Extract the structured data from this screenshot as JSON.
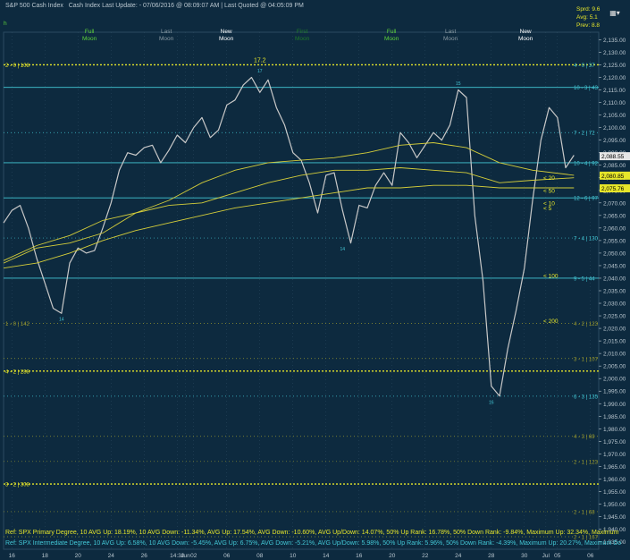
{
  "header": {
    "title": "S&P 500 Cash Index",
    "subtitle": "Cash Index   Last Update:  - 07/06/2016 @ 08:09:07 AM | Last Quoted @ 04:05:09 PM",
    "first_label": "h",
    "moons": [
      {
        "phase": "Full",
        "word": "Moon",
        "color": "#5dd23a"
      },
      {
        "phase": "Last",
        "word": "Moon",
        "color": "#8a9aa3"
      },
      {
        "phase": "New",
        "word": "Moon",
        "color": "#ffffff"
      },
      {
        "phase": "First",
        "word": "Moon",
        "color": "#1f7a2a"
      },
      {
        "phase": "Full",
        "word": "Moon",
        "color": "#5dd23a"
      },
      {
        "phase": "Last",
        "word": "Moon",
        "color": "#8a9aa3"
      },
      {
        "phase": "New",
        "word": "Moon",
        "color": "#ffffff"
      }
    ],
    "stats": [
      "Sprd: 9.6",
      "Avg: 5.1",
      "Prev: 8.8"
    ],
    "menu_icon": "menu-icon"
  },
  "colors": {
    "background": "#0d2a3f",
    "price": "#c8c8c8",
    "cyan": "#43c6d4",
    "yellow": "#e6e62a",
    "olive": "#9c9b2e",
    "ma": "#d4cd3a",
    "grid": "#2a4a60",
    "axis_text": "#b9c6cf"
  },
  "chart_data": {
    "type": "line",
    "ylim": [
      1932,
      2138
    ],
    "y_ticks": [
      1935,
      1940,
      1945,
      1950,
      1955,
      1960,
      1965,
      1970,
      1975,
      1980,
      1985,
      1990,
      1995,
      2000,
      2005,
      2010,
      2015,
      2020,
      2025,
      2030,
      2035,
      2040,
      2045,
      2050,
      2055,
      2060,
      2065,
      2070,
      2075,
      2080,
      2085,
      2090,
      2095,
      2100,
      2105,
      2110,
      2115,
      2120,
      2125,
      2130,
      2135
    ],
    "x_ticks": [
      {
        "label": "16",
        "x": 0.5
      },
      {
        "label": "18",
        "x": 2.5
      },
      {
        "label": "20",
        "x": 4.5
      },
      {
        "label": "24",
        "x": 6.5
      },
      {
        "label": "26",
        "x": 8.5
      },
      {
        "label": "14:30",
        "x": 10.5
      },
      {
        "label": "Jun",
        "x": 11.0
      },
      {
        "label": "02",
        "x": 11.5
      },
      {
        "label": "06",
        "x": 13.5
      },
      {
        "label": "08",
        "x": 15.5
      },
      {
        "label": "10",
        "x": 17.5
      },
      {
        "label": "14",
        "x": 19.5
      },
      {
        "label": "16",
        "x": 21.5
      },
      {
        "label": "20",
        "x": 23.5
      },
      {
        "label": "22",
        "x": 25.5
      },
      {
        "label": "24",
        "x": 27.5
      },
      {
        "label": "28",
        "x": 29.5
      },
      {
        "label": "30",
        "x": 31.5
      },
      {
        "label": "Jul",
        "x": 32.8
      },
      {
        "label": "05",
        "x": 33.5
      },
      {
        "label": "06",
        "x": 35.5
      }
    ],
    "x_range": [
      0,
      36
    ],
    "series": [
      {
        "name": "",
        "style": "price",
        "x": [
          0,
          0.5,
          1,
          1.5,
          2,
          2.5,
          3,
          3.5,
          4,
          4.5,
          5,
          5.5,
          6,
          6.5,
          7,
          7.5,
          8,
          8.5,
          9,
          9.5,
          10,
          10.5,
          11,
          11.5,
          12,
          12.5,
          13,
          13.5,
          14,
          14.5,
          15,
          15.5,
          16,
          16.5,
          17,
          17.5,
          18,
          18.5,
          19,
          19.5,
          20,
          20.5,
          21,
          21.5,
          22,
          22.5,
          23,
          23.5,
          24,
          24.5,
          25,
          25.5,
          26,
          26.5,
          27,
          27.5,
          28,
          28.5,
          29,
          29.5,
          30,
          30.5,
          31,
          31.5,
          32,
          32.5,
          33,
          33.5,
          34,
          34.5
        ],
        "values": [
          2062,
          2067,
          2069,
          2060,
          2048,
          2038,
          2028,
          2026,
          2046,
          2052,
          2050,
          2051,
          2060,
          2070,
          2083,
          2090,
          2089,
          2092,
          2093,
          2086,
          2091,
          2097,
          2094,
          2100,
          2104,
          2096,
          2099,
          2109,
          2111,
          2117,
          2120,
          2114,
          2119,
          2108,
          2101,
          2090,
          2087,
          2078,
          2066,
          2081,
          2082,
          2067,
          2054,
          2069,
          2068,
          2077,
          2082,
          2077,
          2098,
          2094,
          2088,
          2093,
          2098,
          2095,
          2101,
          2115,
          2112,
          2065,
          2039,
          1997,
          1993,
          2012,
          2027,
          2044,
          2071,
          2095,
          2108,
          2104,
          2084,
          2089
        ]
      },
      {
        "name": "",
        "style": "ma",
        "x": [
          0,
          2,
          4,
          6,
          8,
          10,
          12,
          14,
          16,
          18,
          20,
          22,
          24,
          26,
          28,
          30,
          32,
          34.5
        ],
        "values": [
          2046,
          2052,
          2054,
          2058,
          2066,
          2071,
          2078,
          2083,
          2086,
          2087,
          2088,
          2090,
          2093,
          2094,
          2092,
          2086,
          2083,
          2081
        ]
      },
      {
        "name": "",
        "style": "ma",
        "x": [
          0,
          2,
          4,
          6,
          8,
          10,
          12,
          14,
          16,
          18,
          20,
          22,
          24,
          26,
          28,
          30,
          32,
          34.5
        ],
        "values": [
          2047,
          2053,
          2057,
          2063,
          2066,
          2069,
          2070,
          2074,
          2078,
          2081,
          2083,
          2083,
          2084,
          2083,
          2082,
          2078,
          2079,
          2080
        ]
      },
      {
        "name": "",
        "style": "ma",
        "x": [
          0,
          2,
          4,
          6,
          8,
          10,
          12,
          14,
          16,
          18,
          20,
          22,
          24,
          26,
          28,
          30,
          32,
          34.5
        ],
        "values": [
          2044,
          2046,
          2050,
          2055,
          2059,
          2062,
          2065,
          2068,
          2070,
          2072,
          2074,
          2076,
          2076,
          2077,
          2077,
          2076,
          2076,
          2076
        ]
      }
    ],
    "levels": [
      {
        "value": 2125,
        "style": "yellow-dotted",
        "left_label": "2 - 0 | 108",
        "right_label": "4 - 0 | 37"
      },
      {
        "value": 2116,
        "style": "cyan-solid",
        "right_label": "10 - 3 | 43"
      },
      {
        "value": 2098,
        "style": "cyan-dashed",
        "right_label": "7 - 2 | 72"
      },
      {
        "value": 2086,
        "style": "cyan-solid",
        "right_label": "10 - 4 | 92"
      },
      {
        "value": 2072,
        "style": "cyan-solid",
        "right_label": "12 - 6 | 97"
      },
      {
        "value": 2056,
        "style": "cyan-dashed",
        "right_label": "7 - 4 | 130"
      },
      {
        "value": 2040,
        "style": "cyan-solid",
        "right_label": "9 - 5 | 44"
      },
      {
        "value": 2022,
        "style": "olive-dashed",
        "left_label": "1 - 0 | 142",
        "right_label": "4 - 2 | 123"
      },
      {
        "value": 2008,
        "style": "olive-dashed",
        "right_label": "3 - 1 | 107"
      },
      {
        "value": 2003,
        "style": "yellow-dotted",
        "left_label": "4 - 2 | 288"
      },
      {
        "value": 1993,
        "style": "cyan-dashed",
        "right_label": "6 - 3 | 135"
      },
      {
        "value": 1977,
        "style": "olive-dashed",
        "right_label": "4 - 3 | 69"
      },
      {
        "value": 1967,
        "style": "olive-dashed",
        "right_label": "2 - 1 | 123"
      },
      {
        "value": 1958,
        "style": "yellow-dotted",
        "left_label": "3 - 2 | 308"
      },
      {
        "value": 1947,
        "style": "olive-dashed",
        "right_label": "2 - 1 | 68"
      },
      {
        "value": 1937,
        "style": "olive-dashed",
        "right_label": "2 - 1 | 167"
      }
    ],
    "ma_tags": [
      {
        "label": "< 20",
        "value": 2080,
        "color": "#e6e62a"
      },
      {
        "label": "< 50",
        "value": 2075,
        "color": "#e6e62a"
      },
      {
        "label": "< 10",
        "value": 2070,
        "color": "#e6e62a"
      },
      {
        "label": "< 5",
        "value": 2068,
        "color": "#e6e62a"
      },
      {
        "label": "< 100",
        "value": 2041,
        "color": "#e6e62a"
      },
      {
        "label": "< 200",
        "value": 2023,
        "color": "#e6e62a"
      }
    ],
    "price_tags": [
      {
        "label": "2,088.55",
        "value": 2088.6,
        "bg": "#e6e6e6",
        "fg": "#000000"
      },
      {
        "label": "2,080.85",
        "value": 2080.85,
        "bg": "#e6e62a",
        "fg": "#000000"
      },
      {
        "label": "2,075.76",
        "value": 2075.8,
        "bg": "#e6e62a",
        "fg": "#000000"
      }
    ],
    "annotations": [
      {
        "label": "17.2",
        "x": 15.5,
        "value": 2126,
        "color": "#e6e62a"
      },
      {
        "label": "17",
        "x": 15.5,
        "value": 2122,
        "color": "#43c6d4"
      },
      {
        "label": "15",
        "x": 27.5,
        "value": 2117,
        "color": "#43c6d4"
      },
      {
        "label": "14",
        "x": 3.5,
        "value": 2023,
        "color": "#43c6d4"
      },
      {
        "label": "14",
        "x": 20.5,
        "value": 2051,
        "color": "#43c6d4"
      },
      {
        "label": "16",
        "x": 29.5,
        "value": 1990,
        "color": "#43c6d4"
      }
    ]
  },
  "footer": {
    "line1": "Ref: SPX Primary Degree, 10 AVG Up: 18.19%, 10 AVG Down: -11.34%, AVG Up: 17.54%, AVG Down: -10.60%, AVG Up/Down: 14.07%, 50%  Up Rank: 16.78%, 50% Down Rank: -9.84%, Maximum Up: 32.34%, Maximum",
    "line2": "Ref: SPX Intermediate Degree, 10 AVG Up: 6.58%, 10 AVG Down: -5.45%, AVG Up: 6.75%, AVG Down: -5.21%, AVG Up/Down: 5.98%, 50%  Up Rank: 5.96%, 50% Down Rank: -4.39%, Maximum Up: 20.27%, Maximum Do"
  }
}
